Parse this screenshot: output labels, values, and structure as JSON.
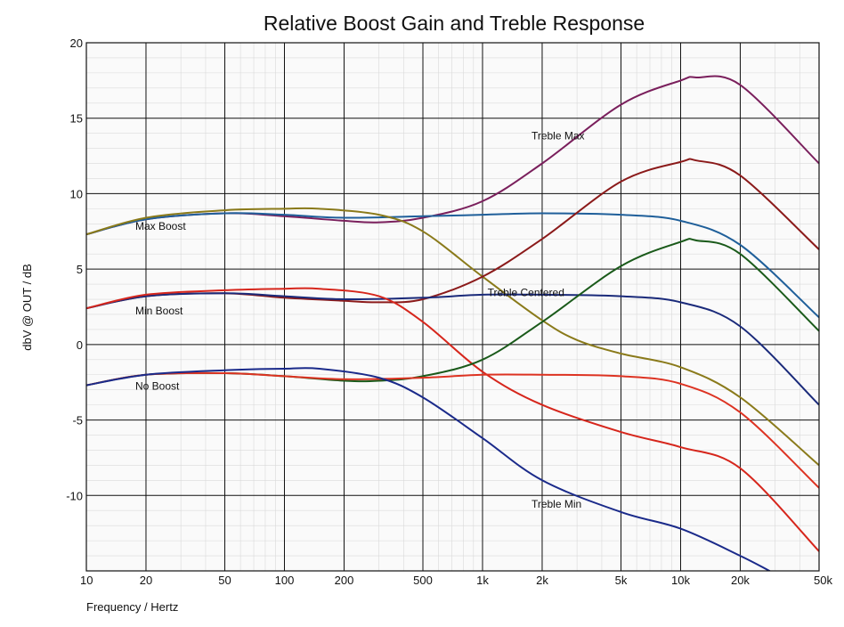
{
  "chart_data": {
    "type": "line",
    "title": "Relative Boost Gain and Treble Response",
    "xlabel": "Frequency / Hertz",
    "ylabel": "dbV @ OUT / dB",
    "x_scale": "log",
    "xlim": [
      10,
      50000
    ],
    "ylim": [
      -15,
      20
    ],
    "x_ticks": [
      10,
      20,
      50,
      100,
      200,
      500,
      1000,
      2000,
      5000,
      10000,
      20000,
      50000
    ],
    "x_tick_labels": [
      "10",
      "20",
      "50",
      "100",
      "200",
      "500",
      "1k",
      "2k",
      "5k",
      "10k",
      "20k",
      "50k"
    ],
    "y_ticks": [
      20,
      15,
      10,
      5,
      0,
      -5,
      -10
    ],
    "y_tick_labels": [
      "20",
      "15",
      "10",
      "5",
      "0",
      "-5",
      "-10"
    ],
    "grid": true,
    "annotations": [
      {
        "text": "Treble Max",
        "x": 2000,
        "y": 13.6
      },
      {
        "text": "Max Boost",
        "x": 20,
        "y": 7.6
      },
      {
        "text": "Treble Centered",
        "x": 1200,
        "y": 3.2
      },
      {
        "text": "Min Boost",
        "x": 20,
        "y": 2.0
      },
      {
        "text": "No Boost",
        "x": 20,
        "y": -3.0
      },
      {
        "text": "Treble Min",
        "x": 2000,
        "y": -10.8
      }
    ],
    "series": [
      {
        "color": "#7a1f5c",
        "x": [
          10,
          20,
          50,
          100,
          200,
          300,
          500,
          1000,
          2000,
          5000,
          10000,
          12000,
          20000,
          50000
        ],
        "y": [
          7.3,
          8.3,
          8.7,
          8.5,
          8.2,
          8.1,
          8.4,
          9.5,
          12.0,
          15.9,
          17.5,
          17.7,
          17.2,
          12.0
        ]
      },
      {
        "color": "#1f5f9a",
        "x": [
          10,
          20,
          50,
          100,
          200,
          500,
          1000,
          2000,
          5000,
          10000,
          20000,
          50000
        ],
        "y": [
          7.3,
          8.3,
          8.7,
          8.6,
          8.4,
          8.5,
          8.6,
          8.7,
          8.6,
          8.2,
          6.6,
          1.8
        ]
      },
      {
        "color": "#8a7a1a",
        "x": [
          10,
          20,
          50,
          100,
          150,
          300,
          500,
          1000,
          2000,
          3000,
          5000,
          10000,
          20000,
          50000
        ],
        "y": [
          7.3,
          8.4,
          8.9,
          9.0,
          9.0,
          8.6,
          7.5,
          4.5,
          1.6,
          0.3,
          -0.6,
          -1.5,
          -3.5,
          -8.0
        ]
      },
      {
        "color": "#8b1a1a",
        "x": [
          10,
          20,
          50,
          100,
          200,
          300,
          500,
          1000,
          2000,
          5000,
          10000,
          12000,
          20000,
          50000
        ],
        "y": [
          2.4,
          3.2,
          3.4,
          3.1,
          2.9,
          2.8,
          3.0,
          4.5,
          7.0,
          10.8,
          12.1,
          12.2,
          11.2,
          6.3
        ]
      },
      {
        "color": "#1a2a7a",
        "x": [
          10,
          20,
          50,
          100,
          200,
          500,
          1000,
          2000,
          5000,
          10000,
          20000,
          50000
        ],
        "y": [
          2.4,
          3.2,
          3.4,
          3.2,
          3.0,
          3.1,
          3.3,
          3.3,
          3.2,
          2.8,
          1.2,
          -4.0
        ]
      },
      {
        "color": "#d6261c",
        "x": [
          10,
          20,
          50,
          100,
          150,
          300,
          500,
          1000,
          2000,
          5000,
          10000,
          20000,
          50000
        ],
        "y": [
          2.4,
          3.3,
          3.6,
          3.7,
          3.7,
          3.2,
          1.5,
          -1.8,
          -4.0,
          -5.8,
          -6.8,
          -8.2,
          -13.7
        ]
      },
      {
        "color": "#1a5a1a",
        "x": [
          10,
          20,
          50,
          100,
          200,
          300,
          500,
          1000,
          2000,
          5000,
          10000,
          12000,
          20000,
          50000
        ],
        "y": [
          -2.7,
          -2.0,
          -1.9,
          -2.1,
          -2.4,
          -2.4,
          -2.1,
          -1.0,
          1.5,
          5.2,
          6.8,
          6.9,
          6.0,
          0.9
        ]
      },
      {
        "color": "#dd3322",
        "x": [
          10,
          20,
          50,
          100,
          200,
          500,
          1000,
          2000,
          5000,
          10000,
          20000,
          50000
        ],
        "y": [
          -2.7,
          -2.0,
          -1.9,
          -2.1,
          -2.3,
          -2.2,
          -2.0,
          -2.0,
          -2.1,
          -2.6,
          -4.5,
          -9.5
        ]
      },
      {
        "color": "#1a2a8a",
        "x": [
          10,
          20,
          50,
          100,
          150,
          300,
          500,
          1000,
          2000,
          5000,
          10000,
          20000,
          30000
        ],
        "y": [
          -2.7,
          -2.0,
          -1.7,
          -1.6,
          -1.6,
          -2.2,
          -3.5,
          -6.2,
          -9.0,
          -11.1,
          -12.2,
          -14.0,
          -15.2
        ]
      }
    ]
  }
}
